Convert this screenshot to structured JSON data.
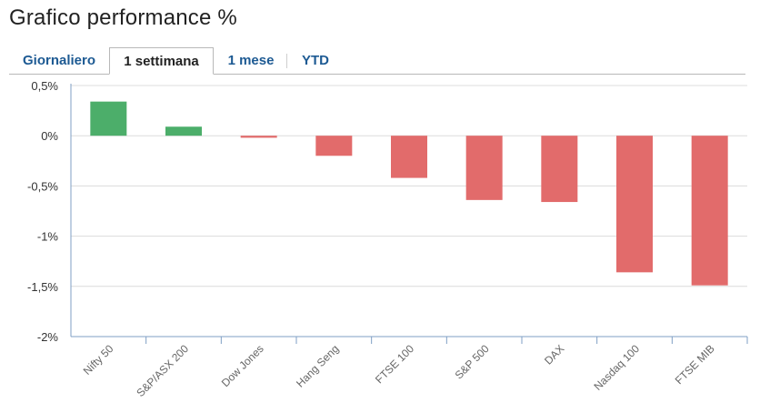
{
  "page": {
    "title": "Grafico performance %"
  },
  "tabs": [
    {
      "label": "Giornaliero",
      "active": false
    },
    {
      "label": "1 settimana",
      "active": true
    },
    {
      "label": "1 mese",
      "active": false
    },
    {
      "label": "YTD",
      "active": false
    }
  ],
  "colors": {
    "positive": "#4cae6a",
    "negative": "#e26b6b",
    "grid": "#dcdcdc",
    "axis": "#7f9fc4",
    "tab_text": "#1d5a93"
  },
  "chart_data": {
    "type": "bar",
    "title": "",
    "xlabel": "",
    "ylabel": "",
    "grid": true,
    "categories": [
      "Nifty 50",
      "S&P/ASX 200",
      "Dow Jones",
      "Hang Seng",
      "FTSE 100",
      "S&P 500",
      "DAX",
      "Nasdaq 100",
      "FTSE MIB"
    ],
    "values": [
      0.34,
      0.09,
      -0.02,
      -0.2,
      -0.42,
      -0.64,
      -0.66,
      -1.36,
      -1.49
    ],
    "ylim": [
      -2,
      0.5
    ],
    "yticks": [
      0.5,
      0,
      -0.5,
      -1,
      -1.5,
      -2
    ],
    "ytick_labels": [
      "0,5%",
      "0%",
      "-0,5%",
      "-1%",
      "-1,5%",
      "-2%"
    ]
  }
}
